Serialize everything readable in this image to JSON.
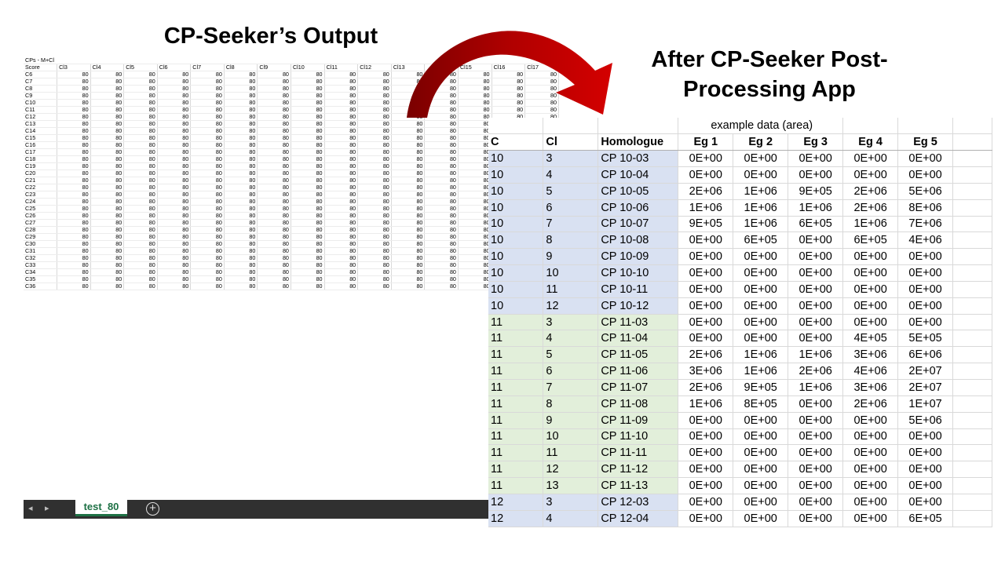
{
  "titles": {
    "left": "CP-Seeker’s Output",
    "right_line1": "After CP-Seeker Post-",
    "right_line2": "Processing App"
  },
  "left_sheet": {
    "header_row1": "CPs - M+Cl",
    "header_row2_label": "Score",
    "columns": [
      "Cl3",
      "Cl4",
      "Cl5",
      "Cl6",
      "Cl7",
      "Cl8",
      "Cl9",
      "Cl10",
      "Cl11",
      "Cl12",
      "Cl13",
      "",
      "Cl15",
      "Cl16",
      "Cl17"
    ],
    "rows": [
      "C6",
      "C7",
      "C8",
      "C9",
      "C10",
      "C11",
      "C12",
      "C13",
      "C14",
      "C15",
      "C16",
      "C17",
      "C18",
      "C19",
      "C20",
      "C21",
      "C22",
      "C23",
      "C24",
      "C25",
      "C26",
      "C27",
      "C28",
      "C29",
      "C30",
      "C31",
      "C32",
      "C33",
      "C34",
      "C35",
      "C36"
    ],
    "cell_value": "80",
    "sheet_tab": "test_80",
    "nav_prev": "◂",
    "nav_next": "▸",
    "add_sheet": "+"
  },
  "right_table": {
    "super_header": "example data (area)",
    "headers": [
      "C",
      "Cl",
      "Homologue",
      "Eg 1",
      "Eg 2",
      "Eg 3",
      "Eg 4",
      "Eg 5"
    ],
    "group_colors": [
      "#d9e1f2",
      "#e2efda"
    ],
    "rows": [
      {
        "c": "10",
        "cl": "3",
        "h": "CP 10-03",
        "e": [
          "0E+00",
          "0E+00",
          "0E+00",
          "0E+00",
          "0E+00"
        ],
        "g": 0
      },
      {
        "c": "10",
        "cl": "4",
        "h": "CP 10-04",
        "e": [
          "0E+00",
          "0E+00",
          "0E+00",
          "0E+00",
          "0E+00"
        ],
        "g": 0
      },
      {
        "c": "10",
        "cl": "5",
        "h": "CP 10-05",
        "e": [
          "2E+06",
          "1E+06",
          "9E+05",
          "2E+06",
          "5E+06"
        ],
        "g": 0
      },
      {
        "c": "10",
        "cl": "6",
        "h": "CP 10-06",
        "e": [
          "1E+06",
          "1E+06",
          "1E+06",
          "2E+06",
          "8E+06"
        ],
        "g": 0
      },
      {
        "c": "10",
        "cl": "7",
        "h": "CP 10-07",
        "e": [
          "9E+05",
          "1E+06",
          "6E+05",
          "1E+06",
          "7E+06"
        ],
        "g": 0
      },
      {
        "c": "10",
        "cl": "8",
        "h": "CP 10-08",
        "e": [
          "0E+00",
          "6E+05",
          "0E+00",
          "6E+05",
          "4E+06"
        ],
        "g": 0
      },
      {
        "c": "10",
        "cl": "9",
        "h": "CP 10-09",
        "e": [
          "0E+00",
          "0E+00",
          "0E+00",
          "0E+00",
          "0E+00"
        ],
        "g": 0
      },
      {
        "c": "10",
        "cl": "10",
        "h": "CP 10-10",
        "e": [
          "0E+00",
          "0E+00",
          "0E+00",
          "0E+00",
          "0E+00"
        ],
        "g": 0
      },
      {
        "c": "10",
        "cl": "11",
        "h": "CP 10-11",
        "e": [
          "0E+00",
          "0E+00",
          "0E+00",
          "0E+00",
          "0E+00"
        ],
        "g": 0
      },
      {
        "c": "10",
        "cl": "12",
        "h": "CP 10-12",
        "e": [
          "0E+00",
          "0E+00",
          "0E+00",
          "0E+00",
          "0E+00"
        ],
        "g": 0
      },
      {
        "c": "11",
        "cl": "3",
        "h": "CP 11-03",
        "e": [
          "0E+00",
          "0E+00",
          "0E+00",
          "0E+00",
          "0E+00"
        ],
        "g": 1
      },
      {
        "c": "11",
        "cl": "4",
        "h": "CP 11-04",
        "e": [
          "0E+00",
          "0E+00",
          "0E+00",
          "4E+05",
          "5E+05"
        ],
        "g": 1
      },
      {
        "c": "11",
        "cl": "5",
        "h": "CP 11-05",
        "e": [
          "2E+06",
          "1E+06",
          "1E+06",
          "3E+06",
          "6E+06"
        ],
        "g": 1
      },
      {
        "c": "11",
        "cl": "6",
        "h": "CP 11-06",
        "e": [
          "3E+06",
          "1E+06",
          "2E+06",
          "4E+06",
          "2E+07"
        ],
        "g": 1
      },
      {
        "c": "11",
        "cl": "7",
        "h": "CP 11-07",
        "e": [
          "2E+06",
          "9E+05",
          "1E+06",
          "3E+06",
          "2E+07"
        ],
        "g": 1
      },
      {
        "c": "11",
        "cl": "8",
        "h": "CP 11-08",
        "e": [
          "1E+06",
          "8E+05",
          "0E+00",
          "2E+06",
          "1E+07"
        ],
        "g": 1
      },
      {
        "c": "11",
        "cl": "9",
        "h": "CP 11-09",
        "e": [
          "0E+00",
          "0E+00",
          "0E+00",
          "0E+00",
          "5E+06"
        ],
        "g": 1
      },
      {
        "c": "11",
        "cl": "10",
        "h": "CP 11-10",
        "e": [
          "0E+00",
          "0E+00",
          "0E+00",
          "0E+00",
          "0E+00"
        ],
        "g": 1
      },
      {
        "c": "11",
        "cl": "11",
        "h": "CP 11-11",
        "e": [
          "0E+00",
          "0E+00",
          "0E+00",
          "0E+00",
          "0E+00"
        ],
        "g": 1
      },
      {
        "c": "11",
        "cl": "12",
        "h": "CP 11-12",
        "e": [
          "0E+00",
          "0E+00",
          "0E+00",
          "0E+00",
          "0E+00"
        ],
        "g": 1
      },
      {
        "c": "11",
        "cl": "13",
        "h": "CP 11-13",
        "e": [
          "0E+00",
          "0E+00",
          "0E+00",
          "0E+00",
          "0E+00"
        ],
        "g": 1
      },
      {
        "c": "12",
        "cl": "3",
        "h": "CP 12-03",
        "e": [
          "0E+00",
          "0E+00",
          "0E+00",
          "0E+00",
          "0E+00"
        ],
        "g": 0
      },
      {
        "c": "12",
        "cl": "4",
        "h": "CP 12-04",
        "e": [
          "0E+00",
          "0E+00",
          "0E+00",
          "0E+00",
          "6E+05"
        ],
        "g": 0
      }
    ]
  },
  "arrow": {
    "color": "#c00000",
    "icon": "curved-arrow-icon"
  }
}
